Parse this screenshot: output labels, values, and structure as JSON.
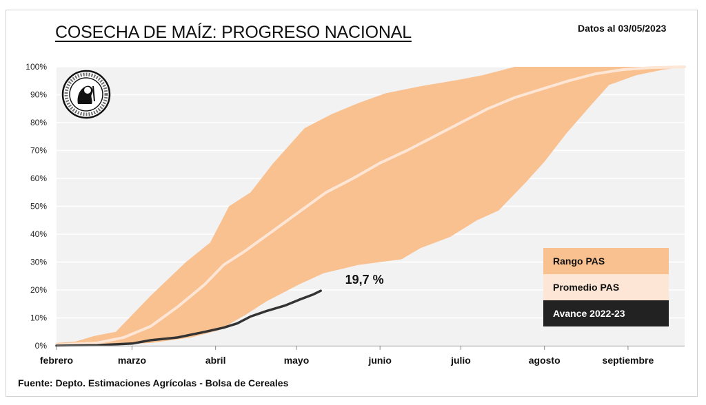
{
  "header": {
    "title": "COSECHA DE MAÍZ: PROGRESO NACIONAL",
    "date_note": "Datos al 03/05/2023"
  },
  "footer": {
    "source": "Fuente: Depto. Estimaciones Agrícolas - Bolsa de Cereales"
  },
  "logo": {
    "icon": "institution-seal-icon",
    "ring_text": "Constantia et Labore · Buenos Aires · 1854"
  },
  "colors": {
    "range_fill": "#f9c090",
    "average_line": "#fde6d6",
    "current_line": "#333333",
    "plot_bg": "#f2f2f2",
    "gridline": "#ffffff",
    "legend_current_bg": "#222222"
  },
  "chart_data": {
    "type": "area",
    "title": "COSECHA DE MAÍZ: PROGRESO NACIONAL",
    "xlabel": "",
    "ylabel": "",
    "x_unit": "days since 1 Feb",
    "xlim": [
      0,
      233
    ],
    "ylim": [
      0,
      100
    ],
    "y_ticks": [
      "0%",
      "10%",
      "20%",
      "30%",
      "40%",
      "50%",
      "60%",
      "70%",
      "80%",
      "90%",
      "100%"
    ],
    "x_ticks": [
      {
        "label": "febrero",
        "day": 0
      },
      {
        "label": "marzo",
        "day": 28
      },
      {
        "label": "abril",
        "day": 59
      },
      {
        "label": "mayo",
        "day": 89
      },
      {
        "label": "junio",
        "day": 120
      },
      {
        "label": "julio",
        "day": 150
      },
      {
        "label": "agosto",
        "day": 181
      },
      {
        "label": "septiembre",
        "day": 212
      }
    ],
    "grid": true,
    "legend_position": "bottom-right",
    "series": [
      {
        "name": "Rango PAS",
        "kind": "band",
        "upper": [
          [
            0,
            1
          ],
          [
            7,
            1.5
          ],
          [
            14,
            3.5
          ],
          [
            22,
            5
          ],
          [
            35,
            18
          ],
          [
            48,
            30
          ],
          [
            57,
            37
          ],
          [
            64,
            50
          ],
          [
            72,
            55
          ],
          [
            80,
            65
          ],
          [
            92,
            78
          ],
          [
            102,
            83
          ],
          [
            112,
            87
          ],
          [
            122,
            90.5
          ],
          [
            135,
            93
          ],
          [
            150,
            95.5
          ],
          [
            158,
            97
          ],
          [
            166,
            99
          ],
          [
            170,
            100
          ],
          [
            233,
            100
          ]
        ],
        "lower": [
          [
            0,
            0.3
          ],
          [
            20,
            0.3
          ],
          [
            35,
            1
          ],
          [
            50,
            3
          ],
          [
            60,
            5.5
          ],
          [
            70,
            11
          ],
          [
            78,
            16
          ],
          [
            90,
            22
          ],
          [
            99,
            26
          ],
          [
            112,
            29
          ],
          [
            128,
            31
          ],
          [
            135,
            35
          ],
          [
            146,
            39
          ],
          [
            156,
            45
          ],
          [
            164,
            48.5
          ],
          [
            174,
            58.5
          ],
          [
            181,
            66
          ],
          [
            189,
            76
          ],
          [
            198,
            86
          ],
          [
            205,
            93.5
          ],
          [
            215,
            97
          ],
          [
            225,
            99
          ],
          [
            233,
            100
          ]
        ]
      },
      {
        "name": "Promedio PAS",
        "kind": "line",
        "points": [
          [
            0,
            0.3
          ],
          [
            15,
            1
          ],
          [
            25,
            3
          ],
          [
            35,
            7
          ],
          [
            45,
            14
          ],
          [
            55,
            22
          ],
          [
            62,
            29
          ],
          [
            70,
            34
          ],
          [
            80,
            41
          ],
          [
            90,
            48
          ],
          [
            100,
            55
          ],
          [
            110,
            60
          ],
          [
            120,
            65.5
          ],
          [
            130,
            70
          ],
          [
            140,
            75
          ],
          [
            150,
            80
          ],
          [
            160,
            85
          ],
          [
            170,
            89
          ],
          [
            180,
            92
          ],
          [
            190,
            95
          ],
          [
            200,
            97.5
          ],
          [
            210,
            99
          ],
          [
            220,
            99.7
          ],
          [
            233,
            100
          ]
        ]
      },
      {
        "name": "Avance 2022-23",
        "kind": "line",
        "points": [
          [
            0,
            0
          ],
          [
            15,
            0.2
          ],
          [
            28,
            0.8
          ],
          [
            35,
            2
          ],
          [
            45,
            3
          ],
          [
            55,
            5
          ],
          [
            62,
            6.5
          ],
          [
            67,
            8
          ],
          [
            72,
            10.5
          ],
          [
            78,
            12.5
          ],
          [
            85,
            14.5
          ],
          [
            90,
            16.5
          ],
          [
            95,
            18.3
          ],
          [
            98,
            19.7
          ]
        ]
      }
    ],
    "annotations": [
      {
        "text": "19,7 %",
        "day": 104,
        "value": 23
      }
    ]
  },
  "legend": {
    "items": [
      {
        "label": "Rango PAS"
      },
      {
        "label": "Promedio PAS"
      },
      {
        "label": "Avance 2022-23"
      }
    ]
  }
}
